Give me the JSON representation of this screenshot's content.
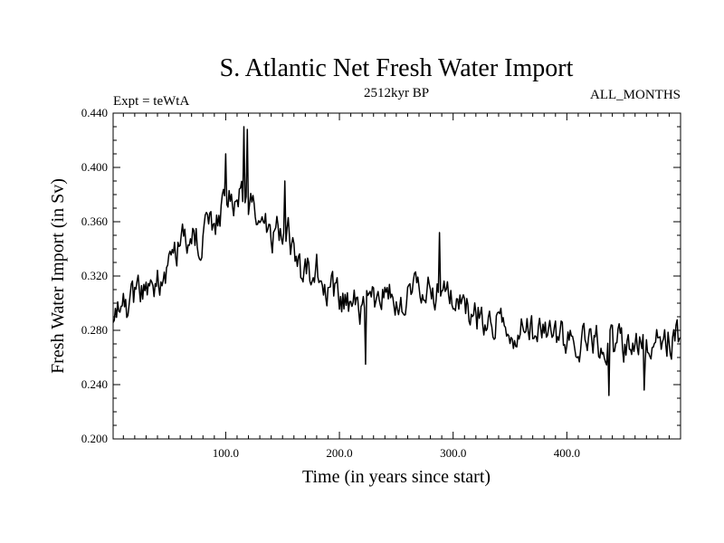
{
  "chart_data": {
    "type": "line",
    "title": "S. Atlantic Net Fresh Water Import",
    "subtitle": "2512kyr BP",
    "left_label": "Expt = teWtA",
    "right_label": "ALL_MONTHS",
    "xlabel": "Time (in years since start)",
    "ylabel": "Fresh Water Import (in Sv)",
    "xlim": [
      1,
      500
    ],
    "ylim": [
      0.2,
      0.44
    ],
    "x_ticks": [
      100,
      200,
      300,
      400
    ],
    "x_tick_labels": [
      "100.0",
      "200.0",
      "300.0",
      "400.0"
    ],
    "y_ticks": [
      0.2,
      0.24,
      0.28,
      0.32,
      0.36,
      0.4,
      0.44
    ],
    "y_tick_labels": [
      "0.200",
      "0.240",
      "0.280",
      "0.320",
      "0.360",
      "0.400",
      "0.440"
    ],
    "grid": false,
    "series": [
      {
        "name": "Net Fresh Water Import",
        "color": "#000000",
        "x_start": 1,
        "x_step": 1,
        "trend_anchors": [
          [
            1,
            0.285
          ],
          [
            20,
            0.305
          ],
          [
            40,
            0.315
          ],
          [
            60,
            0.345
          ],
          [
            80,
            0.35
          ],
          [
            100,
            0.372
          ],
          [
            115,
            0.378
          ],
          [
            125,
            0.365
          ],
          [
            140,
            0.35
          ],
          [
            155,
            0.352
          ],
          [
            165,
            0.32
          ],
          [
            180,
            0.325
          ],
          [
            200,
            0.3
          ],
          [
            220,
            0.295
          ],
          [
            240,
            0.302
          ],
          [
            260,
            0.305
          ],
          [
            280,
            0.31
          ],
          [
            300,
            0.302
          ],
          [
            320,
            0.29
          ],
          [
            340,
            0.285
          ],
          [
            360,
            0.28
          ],
          [
            380,
            0.275
          ],
          [
            400,
            0.275
          ],
          [
            420,
            0.272
          ],
          [
            440,
            0.268
          ],
          [
            460,
            0.27
          ],
          [
            480,
            0.27
          ],
          [
            500,
            0.275
          ]
        ],
        "noise_amplitude": 0.013,
        "notable_points": [
          [
            116,
            0.43
          ],
          [
            119,
            0.428
          ],
          [
            100,
            0.41
          ],
          [
            152,
            0.39
          ],
          [
            288,
            0.352
          ],
          [
            437,
            0.232
          ],
          [
            223,
            0.255
          ],
          [
            468,
            0.236
          ]
        ],
        "clip": [
          0.232,
          0.43
        ]
      }
    ]
  }
}
